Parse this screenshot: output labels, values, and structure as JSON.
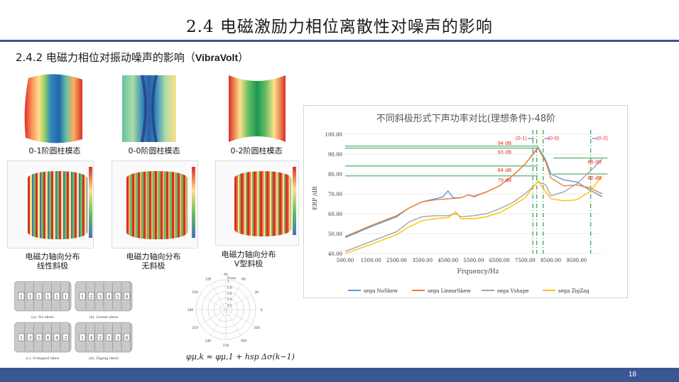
{
  "slide": {
    "title": "2.4  电磁激励力相位离散性对噪声的影响",
    "subtitle_main": "2.4.2 电磁力相位对振动噪声的影响（",
    "subtitle_tool": "VibraVolt",
    "subtitle_end": "）",
    "page_number": "18"
  },
  "modes": [
    {
      "caption": "0-1阶圆柱模态"
    },
    {
      "caption": "0-0阶圆柱模态"
    },
    {
      "caption": "0-2阶圆柱模态"
    }
  ],
  "force_maps": [
    {
      "caption_line1": "电磁力轴向分布",
      "caption_line2": "线性斜极"
    },
    {
      "caption_line1": "电磁力轴向分布",
      "caption_line2": "无斜极"
    },
    {
      "caption_line1": "电磁力轴向分布",
      "caption_line2": "V型斜极"
    }
  ],
  "skew_diagrams": [
    {
      "caption": "(a). No skew",
      "numbers": [
        "1",
        "1",
        "1",
        "1",
        "1",
        "1"
      ]
    },
    {
      "caption": "(b). Linear skew",
      "numbers": [
        "1",
        "2",
        "3",
        "4",
        "5",
        "6"
      ]
    },
    {
      "caption": "(c). V-shaped skew",
      "numbers": [
        "1",
        "3",
        "5",
        "6",
        "4",
        "2"
      ]
    },
    {
      "caption": "(d). Zigzag skew",
      "numbers": [
        "1",
        "4",
        "2",
        "5",
        "3",
        "6"
      ]
    }
  ],
  "polar": {
    "angle_labels": [
      "90",
      "60",
      "30",
      "0",
      "330",
      "300",
      "270",
      "240",
      "210",
      "180",
      "150",
      "120"
    ],
    "radial_labels": [
      "1",
      "0.8",
      "0.6",
      "0.4",
      "0.2"
    ],
    "top_label": "Shape"
  },
  "formula": "φμ,k ≈ φμ,1 + hsp Δσ(k−1)",
  "chart_data": {
    "type": "line",
    "title": "不同斜极形式下声功率对比(理想条件)-48阶",
    "xlabel": "Frquency/Hz",
    "ylabel": "ERP /dB",
    "xlim": [
      500,
      10500
    ],
    "ylim": [
      40,
      100
    ],
    "x_ticks": [
      "500.00",
      "1500.00",
      "2500.00",
      "3500.00",
      "4500.00",
      "5500.00",
      "6500.00",
      "7500.00",
      "8500.00",
      "9500.00"
    ],
    "y_ticks": [
      "40.00",
      "50.00",
      "60.00",
      "70.00",
      "80.00",
      "90.00",
      "100.00"
    ],
    "grid": "horizontal",
    "legend_position": "bottom",
    "series": [
      {
        "name": "sega NoSkew",
        "color": "#5b9bd5",
        "x": [
          500,
          1500,
          2500,
          3000,
          3500,
          4000,
          4300,
          4500,
          4700,
          5000,
          5300,
          5500,
          6000,
          6500,
          7000,
          7500,
          8000,
          8300,
          8500,
          9000,
          9500,
          10000,
          10500
        ],
        "y": [
          48,
          53.5,
          58.5,
          63,
          66,
          67.5,
          68.5,
          71.5,
          68,
          68,
          69.5,
          68.8,
          71,
          74,
          79,
          85,
          93.5,
          87,
          80,
          77,
          76,
          72,
          68.5
        ]
      },
      {
        "name": "sega LinearSkew",
        "color": "#ed7d31",
        "x": [
          500,
          1500,
          2500,
          3000,
          3500,
          4000,
          4500,
          5000,
          5300,
          5500,
          6000,
          6500,
          7000,
          7500,
          8000,
          8300,
          8500,
          9000,
          9500,
          10000,
          10500
        ],
        "y": [
          48.5,
          54,
          59,
          63,
          66,
          67,
          67.5,
          68,
          69.5,
          68.5,
          71,
          74,
          79,
          85,
          93,
          86,
          78,
          74,
          74.5,
          73,
          70
        ]
      },
      {
        "name": "sega Vshape",
        "color": "#a5a5a5",
        "x": [
          500,
          1500,
          2500,
          3000,
          3500,
          4000,
          4500,
          4800,
          5000,
          5500,
          6000,
          6500,
          7000,
          7500,
          8000,
          8300,
          8500,
          9000,
          9500,
          10000,
          10500
        ],
        "y": [
          41,
          46,
          51,
          56,
          58.5,
          59,
          59,
          60,
          58.5,
          59,
          60,
          62.5,
          65.5,
          70,
          76,
          74.5,
          69,
          71,
          75,
          81,
          87.5
        ]
      },
      {
        "name": "sega ZigZag",
        "color": "#ffc000",
        "x": [
          500,
          1500,
          2500,
          3000,
          3500,
          4000,
          4500,
          4800,
          5000,
          5500,
          6000,
          6500,
          7000,
          7500,
          8000,
          8300,
          8500,
          9000,
          9500,
          10000,
          10500
        ],
        "y": [
          40,
          44.5,
          49.5,
          53.5,
          56.5,
          57.5,
          58,
          61,
          57.5,
          57.5,
          58.5,
          60.5,
          64,
          68,
          76.5,
          71,
          67.5,
          66.5,
          67,
          71,
          79
        ]
      }
    ],
    "annotations": [
      {
        "text": "94 dB",
        "y": 94
      },
      {
        "text": "93 dB",
        "y": 93
      },
      {
        "text": "84 dB",
        "y": 84
      },
      {
        "text": "79 dB",
        "y": 79
      },
      {
        "text": "88 dB",
        "y": 88
      },
      {
        "text": "80 dB",
        "y": 80
      },
      {
        "text": "(0-1)",
        "x": 7950
      },
      {
        "text": "(0-0)",
        "x": 8350
      },
      {
        "text": "(0-2)",
        "x": 10400
      }
    ]
  }
}
